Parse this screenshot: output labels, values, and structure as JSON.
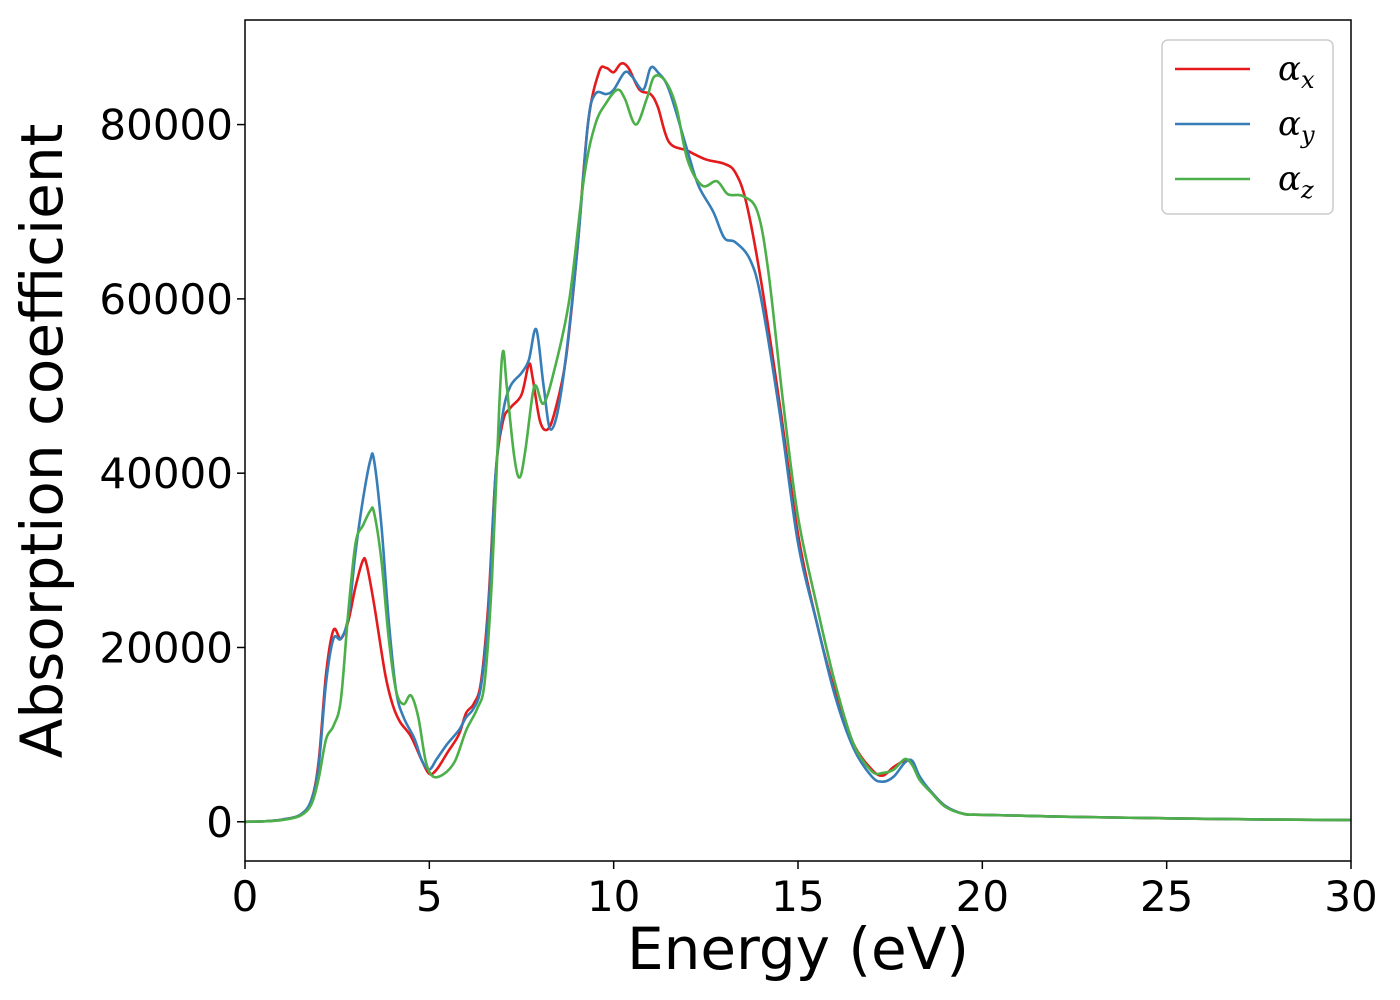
{
  "chart_data": {
    "type": "line",
    "title": "",
    "xlabel": "Energy (eV)",
    "ylabel": "Absorption coefficient",
    "xlim": [
      0,
      30
    ],
    "ylim": [
      -4500,
      92000
    ],
    "x_ticks": [
      0,
      5,
      10,
      15,
      20,
      25,
      30
    ],
    "y_ticks": [
      0,
      20000,
      40000,
      60000,
      80000
    ],
    "grid": false,
    "legend_position": "top-right",
    "series": [
      {
        "name": "α",
        "name_sub": "x",
        "color": "#e41a1c",
        "points": [
          [
            0,
            0
          ],
          [
            0.5,
            50
          ],
          [
            1.0,
            250
          ],
          [
            1.5,
            800
          ],
          [
            1.8,
            2500
          ],
          [
            2.0,
            7000
          ],
          [
            2.2,
            17000
          ],
          [
            2.4,
            22000
          ],
          [
            2.6,
            21000
          ],
          [
            2.8,
            23000
          ],
          [
            3.0,
            27000
          ],
          [
            3.2,
            30000
          ],
          [
            3.3,
            29500
          ],
          [
            3.5,
            25000
          ],
          [
            3.8,
            17000
          ],
          [
            4.0,
            13500
          ],
          [
            4.2,
            11500
          ],
          [
            4.5,
            9800
          ],
          [
            4.8,
            7000
          ],
          [
            5.0,
            5500
          ],
          [
            5.2,
            6000
          ],
          [
            5.5,
            8000
          ],
          [
            5.8,
            10000
          ],
          [
            6.0,
            12500
          ],
          [
            6.2,
            13500
          ],
          [
            6.4,
            16000
          ],
          [
            6.6,
            25000
          ],
          [
            6.8,
            40000
          ],
          [
            7.0,
            46000
          ],
          [
            7.2,
            47500
          ],
          [
            7.5,
            49000
          ],
          [
            7.7,
            52500
          ],
          [
            7.8,
            51000
          ],
          [
            8.0,
            46000
          ],
          [
            8.2,
            45000
          ],
          [
            8.4,
            47000
          ],
          [
            8.7,
            53000
          ],
          [
            9.0,
            65000
          ],
          [
            9.3,
            80000
          ],
          [
            9.6,
            86000
          ],
          [
            9.8,
            86500
          ],
          [
            10.0,
            86000
          ],
          [
            10.2,
            87000
          ],
          [
            10.4,
            86500
          ],
          [
            10.7,
            84000
          ],
          [
            11.0,
            83500
          ],
          [
            11.2,
            82000
          ],
          [
            11.5,
            78000
          ],
          [
            12.0,
            77000
          ],
          [
            12.5,
            76000
          ],
          [
            13.0,
            75500
          ],
          [
            13.3,
            74500
          ],
          [
            13.6,
            71000
          ],
          [
            14.0,
            62000
          ],
          [
            14.5,
            48000
          ],
          [
            15.0,
            33000
          ],
          [
            15.5,
            23000
          ],
          [
            16.0,
            15000
          ],
          [
            16.5,
            9000
          ],
          [
            17.0,
            6000
          ],
          [
            17.3,
            5300
          ],
          [
            17.6,
            6300
          ],
          [
            17.9,
            7000
          ],
          [
            18.1,
            6700
          ],
          [
            18.3,
            5000
          ],
          [
            18.6,
            3500
          ],
          [
            19.0,
            1800
          ],
          [
            19.5,
            900
          ],
          [
            20.0,
            800
          ],
          [
            22.0,
            600
          ],
          [
            25.0,
            400
          ],
          [
            28.0,
            250
          ],
          [
            30.0,
            200
          ]
        ]
      },
      {
        "name": "α",
        "name_sub": "y",
        "color": "#377eb8",
        "points": [
          [
            0,
            0
          ],
          [
            0.5,
            50
          ],
          [
            1.0,
            250
          ],
          [
            1.5,
            800
          ],
          [
            1.8,
            2500
          ],
          [
            2.0,
            6500
          ],
          [
            2.2,
            16000
          ],
          [
            2.4,
            21000
          ],
          [
            2.6,
            21000
          ],
          [
            2.8,
            23500
          ],
          [
            3.0,
            31000
          ],
          [
            3.2,
            37000
          ],
          [
            3.4,
            41500
          ],
          [
            3.5,
            41500
          ],
          [
            3.7,
            34000
          ],
          [
            3.9,
            23000
          ],
          [
            4.1,
            15000
          ],
          [
            4.3,
            12000
          ],
          [
            4.6,
            9500
          ],
          [
            4.8,
            7000
          ],
          [
            5.0,
            6000
          ],
          [
            5.2,
            7200
          ],
          [
            5.5,
            9000
          ],
          [
            5.8,
            10500
          ],
          [
            6.0,
            12000
          ],
          [
            6.2,
            13000
          ],
          [
            6.4,
            15500
          ],
          [
            6.6,
            24000
          ],
          [
            6.8,
            40000
          ],
          [
            7.0,
            47000
          ],
          [
            7.2,
            50000
          ],
          [
            7.5,
            51500
          ],
          [
            7.7,
            53000
          ],
          [
            7.9,
            56500
          ],
          [
            8.1,
            50000
          ],
          [
            8.3,
            45000
          ],
          [
            8.6,
            50000
          ],
          [
            9.0,
            65000
          ],
          [
            9.3,
            80000
          ],
          [
            9.5,
            83500
          ],
          [
            9.8,
            83500
          ],
          [
            10.0,
            84000
          ],
          [
            10.3,
            86000
          ],
          [
            10.5,
            85500
          ],
          [
            10.8,
            84000
          ],
          [
            11.0,
            86500
          ],
          [
            11.2,
            86000
          ],
          [
            11.5,
            84000
          ],
          [
            12.0,
            77000
          ],
          [
            12.3,
            73000
          ],
          [
            12.7,
            70000
          ],
          [
            13.0,
            67000
          ],
          [
            13.3,
            66500
          ],
          [
            13.7,
            64500
          ],
          [
            14.0,
            60000
          ],
          [
            14.5,
            47000
          ],
          [
            15.0,
            32000
          ],
          [
            15.5,
            23000
          ],
          [
            16.0,
            14500
          ],
          [
            16.5,
            8500
          ],
          [
            17.0,
            5200
          ],
          [
            17.3,
            4600
          ],
          [
            17.6,
            5200
          ],
          [
            17.9,
            6800
          ],
          [
            18.1,
            7000
          ],
          [
            18.3,
            5200
          ],
          [
            18.6,
            3500
          ],
          [
            19.0,
            1800
          ],
          [
            19.5,
            900
          ],
          [
            20.0,
            800
          ],
          [
            22.0,
            600
          ],
          [
            25.0,
            400
          ],
          [
            28.0,
            250
          ],
          [
            30.0,
            200
          ]
        ]
      },
      {
        "name": "α",
        "name_sub": "z",
        "color": "#4daf4a",
        "points": [
          [
            0,
            0
          ],
          [
            0.5,
            50
          ],
          [
            1.0,
            200
          ],
          [
            1.5,
            700
          ],
          [
            1.8,
            2000
          ],
          [
            2.0,
            5000
          ],
          [
            2.2,
            9500
          ],
          [
            2.4,
            11000
          ],
          [
            2.6,
            14000
          ],
          [
            2.8,
            24000
          ],
          [
            3.0,
            32000
          ],
          [
            3.2,
            34000
          ],
          [
            3.4,
            35700
          ],
          [
            3.5,
            35500
          ],
          [
            3.7,
            30000
          ],
          [
            3.9,
            21000
          ],
          [
            4.1,
            15000
          ],
          [
            4.3,
            13500
          ],
          [
            4.5,
            14500
          ],
          [
            4.7,
            12000
          ],
          [
            4.9,
            7000
          ],
          [
            5.1,
            5200
          ],
          [
            5.4,
            5500
          ],
          [
            5.7,
            7000
          ],
          [
            6.0,
            10500
          ],
          [
            6.3,
            13000
          ],
          [
            6.5,
            16000
          ],
          [
            6.7,
            28000
          ],
          [
            6.9,
            48000
          ],
          [
            7.0,
            54000
          ],
          [
            7.1,
            50000
          ],
          [
            7.3,
            42000
          ],
          [
            7.45,
            39500
          ],
          [
            7.6,
            42500
          ],
          [
            7.8,
            49000
          ],
          [
            7.9,
            50000
          ],
          [
            8.1,
            48000
          ],
          [
            8.4,
            52000
          ],
          [
            8.8,
            60000
          ],
          [
            9.2,
            74000
          ],
          [
            9.5,
            80000
          ],
          [
            9.8,
            82500
          ],
          [
            10.1,
            84000
          ],
          [
            10.3,
            83000
          ],
          [
            10.6,
            80000
          ],
          [
            10.9,
            83000
          ],
          [
            11.1,
            85500
          ],
          [
            11.4,
            85000
          ],
          [
            11.7,
            82000
          ],
          [
            12.0,
            76000
          ],
          [
            12.4,
            73000
          ],
          [
            12.8,
            73500
          ],
          [
            13.1,
            72000
          ],
          [
            13.5,
            71800
          ],
          [
            13.9,
            70000
          ],
          [
            14.2,
            63000
          ],
          [
            14.6,
            48000
          ],
          [
            15.0,
            35000
          ],
          [
            15.5,
            25000
          ],
          [
            16.0,
            16000
          ],
          [
            16.5,
            9000
          ],
          [
            17.0,
            5800
          ],
          [
            17.3,
            5600
          ],
          [
            17.6,
            6000
          ],
          [
            17.9,
            7200
          ],
          [
            18.1,
            6500
          ],
          [
            18.3,
            4800
          ],
          [
            18.6,
            3400
          ],
          [
            19.0,
            1700
          ],
          [
            19.5,
            900
          ],
          [
            20.0,
            800
          ],
          [
            22.0,
            600
          ],
          [
            25.0,
            400
          ],
          [
            28.0,
            250
          ],
          [
            30.0,
            200
          ]
        ]
      }
    ]
  }
}
